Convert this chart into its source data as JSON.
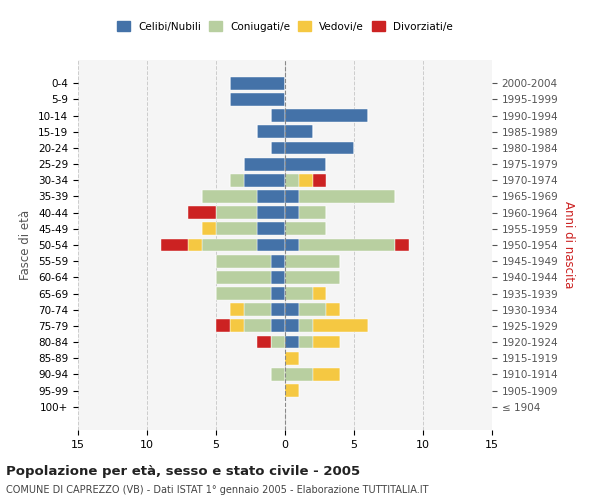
{
  "age_groups": [
    "100+",
    "95-99",
    "90-94",
    "85-89",
    "80-84",
    "75-79",
    "70-74",
    "65-69",
    "60-64",
    "55-59",
    "50-54",
    "45-49",
    "40-44",
    "35-39",
    "30-34",
    "25-29",
    "20-24",
    "15-19",
    "10-14",
    "5-9",
    "0-4"
  ],
  "birth_years": [
    "≤ 1904",
    "1905-1909",
    "1910-1914",
    "1915-1919",
    "1920-1924",
    "1925-1929",
    "1930-1934",
    "1935-1939",
    "1940-1944",
    "1945-1949",
    "1950-1954",
    "1955-1959",
    "1960-1964",
    "1965-1969",
    "1970-1974",
    "1975-1979",
    "1980-1984",
    "1985-1989",
    "1990-1994",
    "1995-1999",
    "2000-2004"
  ],
  "colors": {
    "celibi": "#4472a8",
    "coniugati": "#b8cfa0",
    "vedovi": "#f5c842",
    "divorziati": "#cc2222"
  },
  "males": {
    "celibi": [
      0,
      0,
      0,
      0,
      0,
      1,
      1,
      1,
      1,
      1,
      2,
      2,
      2,
      2,
      3,
      3,
      1,
      2,
      1,
      4,
      4
    ],
    "coniugati": [
      0,
      0,
      1,
      0,
      1,
      2,
      2,
      4,
      4,
      4,
      4,
      3,
      3,
      4,
      1,
      0,
      0,
      0,
      0,
      0,
      0
    ],
    "vedovi": [
      0,
      0,
      0,
      0,
      0,
      1,
      1,
      0,
      0,
      0,
      1,
      1,
      0,
      0,
      0,
      0,
      0,
      0,
      0,
      0,
      0
    ],
    "divorziati": [
      0,
      0,
      0,
      0,
      1,
      1,
      0,
      0,
      0,
      0,
      2,
      0,
      2,
      0,
      0,
      0,
      0,
      0,
      0,
      0,
      0
    ]
  },
  "females": {
    "celibi": [
      0,
      0,
      0,
      0,
      1,
      1,
      1,
      0,
      0,
      0,
      1,
      0,
      1,
      1,
      0,
      3,
      5,
      2,
      6,
      0,
      0
    ],
    "coniugati": [
      0,
      0,
      2,
      0,
      1,
      1,
      2,
      2,
      4,
      4,
      7,
      3,
      2,
      7,
      1,
      0,
      0,
      0,
      0,
      0,
      0
    ],
    "vedovi": [
      0,
      1,
      2,
      1,
      2,
      4,
      1,
      1,
      0,
      0,
      0,
      0,
      0,
      0,
      1,
      0,
      0,
      0,
      0,
      0,
      0
    ],
    "divorziati": [
      0,
      0,
      0,
      0,
      0,
      0,
      0,
      0,
      0,
      0,
      1,
      0,
      0,
      0,
      1,
      0,
      0,
      0,
      0,
      0,
      0
    ]
  },
  "xlim": 15,
  "title": "Popolazione per età, sesso e stato civile - 2005",
  "subtitle": "COMUNE DI CAPREZZO (VB) - Dati ISTAT 1° gennaio 2005 - Elaborazione TUTTITALIA.IT",
  "ylabel_left": "Fasce di età",
  "ylabel_right": "Anni di nascita",
  "legend_labels": [
    "Celibi/Nubili",
    "Coniugati/e",
    "Vedovi/e",
    "Divorziati/e"
  ],
  "bg_color": "#f5f5f5",
  "grid_color": "#cccccc"
}
